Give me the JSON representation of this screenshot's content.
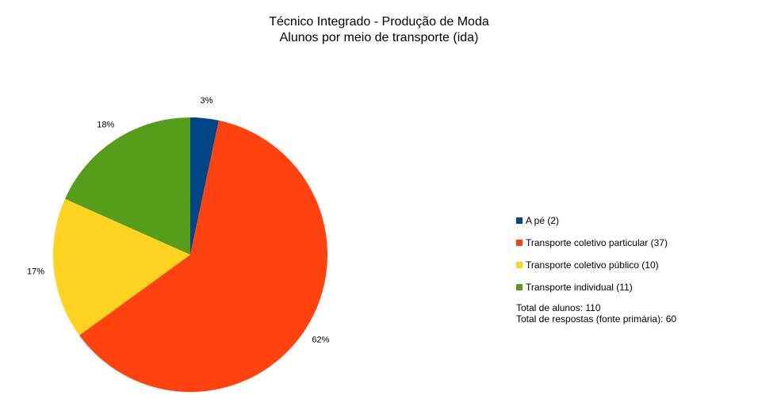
{
  "chart_data": {
    "type": "pie",
    "title": "Técnico Integrado - Produção de Moda",
    "subtitle": "Alunos por meio de transporte (ida)",
    "categories": [
      "A pé",
      "Transporte coletivo particular",
      "Transporte coletivo público",
      "Transporte individual"
    ],
    "values": [
      2,
      37,
      10,
      11
    ],
    "percent_labels": [
      "3%",
      "62%",
      "17%",
      "18%"
    ],
    "legend_labels": [
      "A pé (2)",
      "Transporte coletivo particular (37)",
      "Transporte coletivo público (10)",
      "Transporte individual (11)"
    ],
    "colors": [
      "#004586",
      "#ff420e",
      "#ffd320",
      "#579d1c"
    ],
    "legend_position": "right",
    "notes": [
      "Total de alunos: 110",
      "Total de respostas (fonte primária): 60"
    ]
  }
}
